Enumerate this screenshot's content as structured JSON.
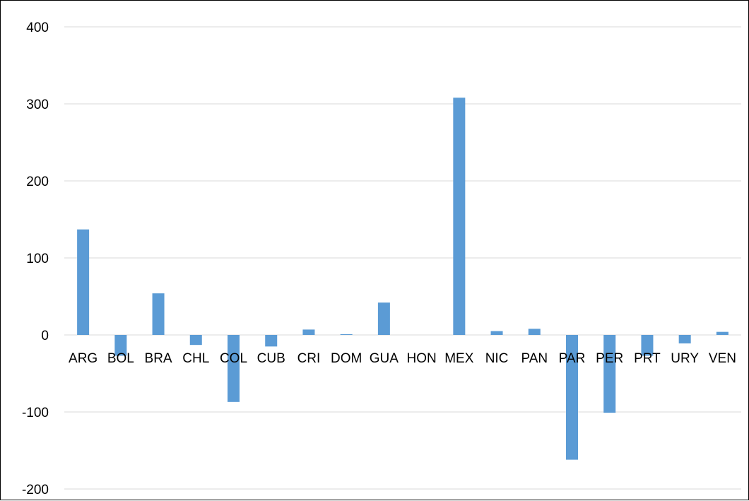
{
  "chart_data": {
    "type": "bar",
    "categories": [
      "ARG",
      "BOL",
      "BRA",
      "CHL",
      "COL",
      "CUB",
      "CRI",
      "DOM",
      "GUA",
      "HON",
      "MEX",
      "NIC",
      "PAN",
      "PAR",
      "PER",
      "PRT",
      "URY",
      "VEN"
    ],
    "values": [
      137,
      -27,
      54,
      -13,
      -87,
      -15,
      7,
      1,
      42,
      0,
      308,
      5,
      8,
      -162,
      -101,
      -27,
      -11,
      4
    ],
    "ylim": [
      -200,
      400
    ],
    "yticks": [
      400,
      300,
      200,
      100,
      0,
      -100,
      -200
    ],
    "ytick_labels": [
      "400",
      "300",
      "200",
      "100",
      "0",
      "-100",
      "-200"
    ],
    "grid": true,
    "bar_color": "#5b9bd5",
    "grid_color": "#d9d9d9",
    "title": "",
    "xlabel": "",
    "ylabel": ""
  }
}
